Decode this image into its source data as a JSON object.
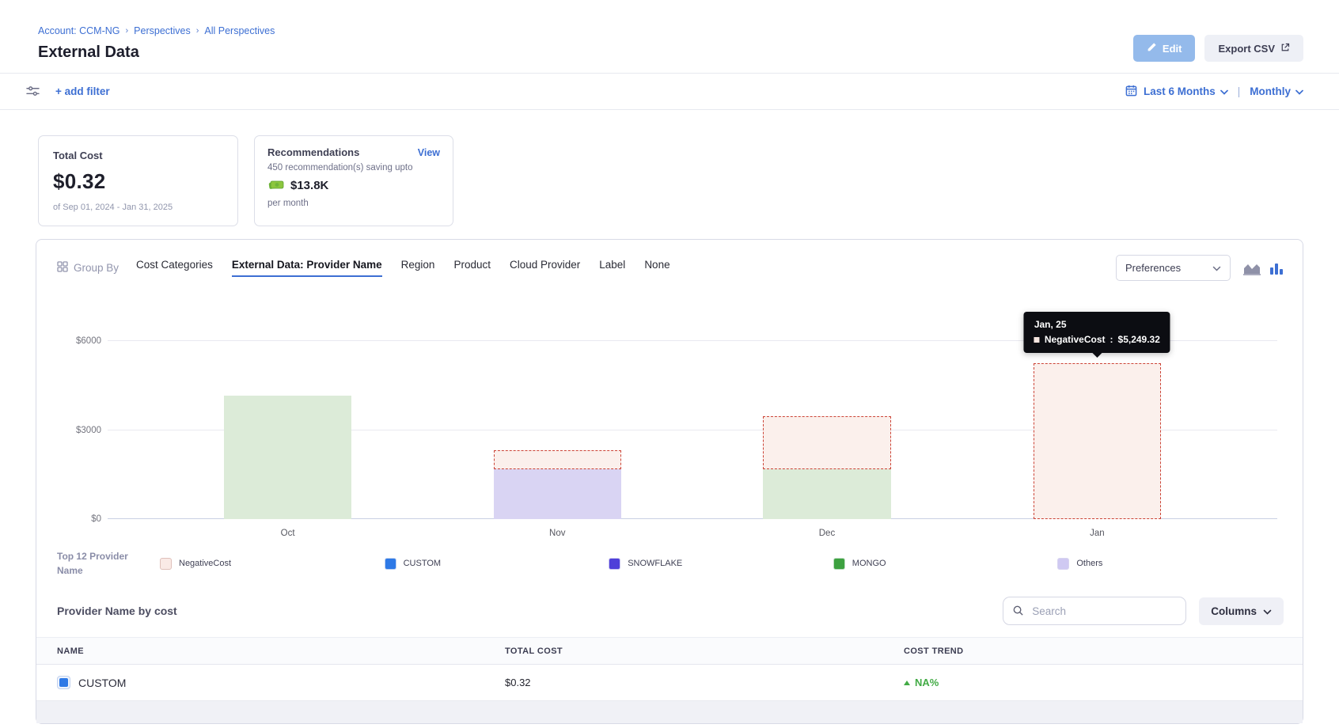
{
  "header": {
    "breadcrumb": [
      "Account: CCM-NG",
      "Perspectives",
      "All Perspectives"
    ],
    "title": "External Data",
    "edit_label": "Edit",
    "export_label": "Export CSV"
  },
  "filter_bar": {
    "add_filter_label": "+ add filter",
    "time_range_label": "Last 6 Months",
    "granularity_label": "Monthly"
  },
  "summary": {
    "total_cost": {
      "label": "Total Cost",
      "value": "$0.32",
      "period": "of Sep 01, 2024 - Jan 31, 2025"
    },
    "recommendations": {
      "label": "Recommendations",
      "view_label": "View",
      "line1": "450 recommendation(s) saving upto",
      "amount": "$13.8K",
      "line2": "per month"
    }
  },
  "group_by": {
    "label": "Group By",
    "tabs": [
      "Cost Categories",
      "External Data: Provider Name",
      "Region",
      "Product",
      "Cloud Provider",
      "Label",
      "None"
    ],
    "active_tab": "External Data: Provider Name",
    "preferences_label": "Preferences"
  },
  "chart_data": {
    "type": "bar",
    "stacked": true,
    "title": "",
    "xlabel": "",
    "ylabel": "",
    "categories": [
      "Oct",
      "Nov",
      "Dec",
      "Jan"
    ],
    "yticks": [
      {
        "label": "$0",
        "value": 0
      },
      {
        "label": "$3000",
        "value": 3000
      },
      {
        "label": "$6000",
        "value": 6000
      }
    ],
    "ylim": [
      0,
      6000
    ],
    "grid": true,
    "legend_position": "bottom",
    "series": [
      {
        "name": "MONGO",
        "values": [
          4170,
          0,
          1670,
          0
        ],
        "color": "#dcebd8",
        "dashed": false
      },
      {
        "name": "SNOWFLAKE",
        "values": [
          0,
          1670,
          0,
          0
        ],
        "color": "#d9d4f3",
        "dashed": false
      },
      {
        "name": "NegativeCost",
        "values": [
          0,
          650,
          1800,
          5249.32
        ],
        "color": "#fbf0ec",
        "dashed": true
      }
    ]
  },
  "tooltip": {
    "title": "Jan, 25",
    "series_label": "NegativeCost",
    "separator": " : ",
    "value": "$5,249.32"
  },
  "legend": {
    "title": "Top 12 Provider Name",
    "items": [
      {
        "label": "NegativeCost",
        "color": "#faeae6",
        "border": "#dfc0ba"
      },
      {
        "label": "CUSTOM",
        "color": "#2e79e6",
        "border": "#bcd0f0"
      },
      {
        "label": "SNOWFLAKE",
        "color": "#4f3fd9",
        "border": "#c8c4ef"
      },
      {
        "label": "MONGO",
        "color": "#3da140",
        "border": "#bcdcc0"
      },
      {
        "label": "Others",
        "color": "#cfc9f2",
        "border": "#d8d4f0"
      }
    ]
  },
  "table": {
    "title": "Provider Name by cost",
    "search_placeholder": "Search",
    "columns_label": "Columns",
    "headers": [
      "NAME",
      "TOTAL COST",
      "COST TREND"
    ],
    "rows": [
      {
        "name": "CUSTOM",
        "chip_color": "#2e79e6",
        "total_cost": "$0.32",
        "trend": "NA%",
        "trend_direction": "up"
      }
    ]
  },
  "colors": {
    "accent_blue": "#3d6fd3",
    "negative_dash": "#cc4437",
    "trend_green": "#42ab45",
    "tooltip_bg": "#0c0d12"
  }
}
